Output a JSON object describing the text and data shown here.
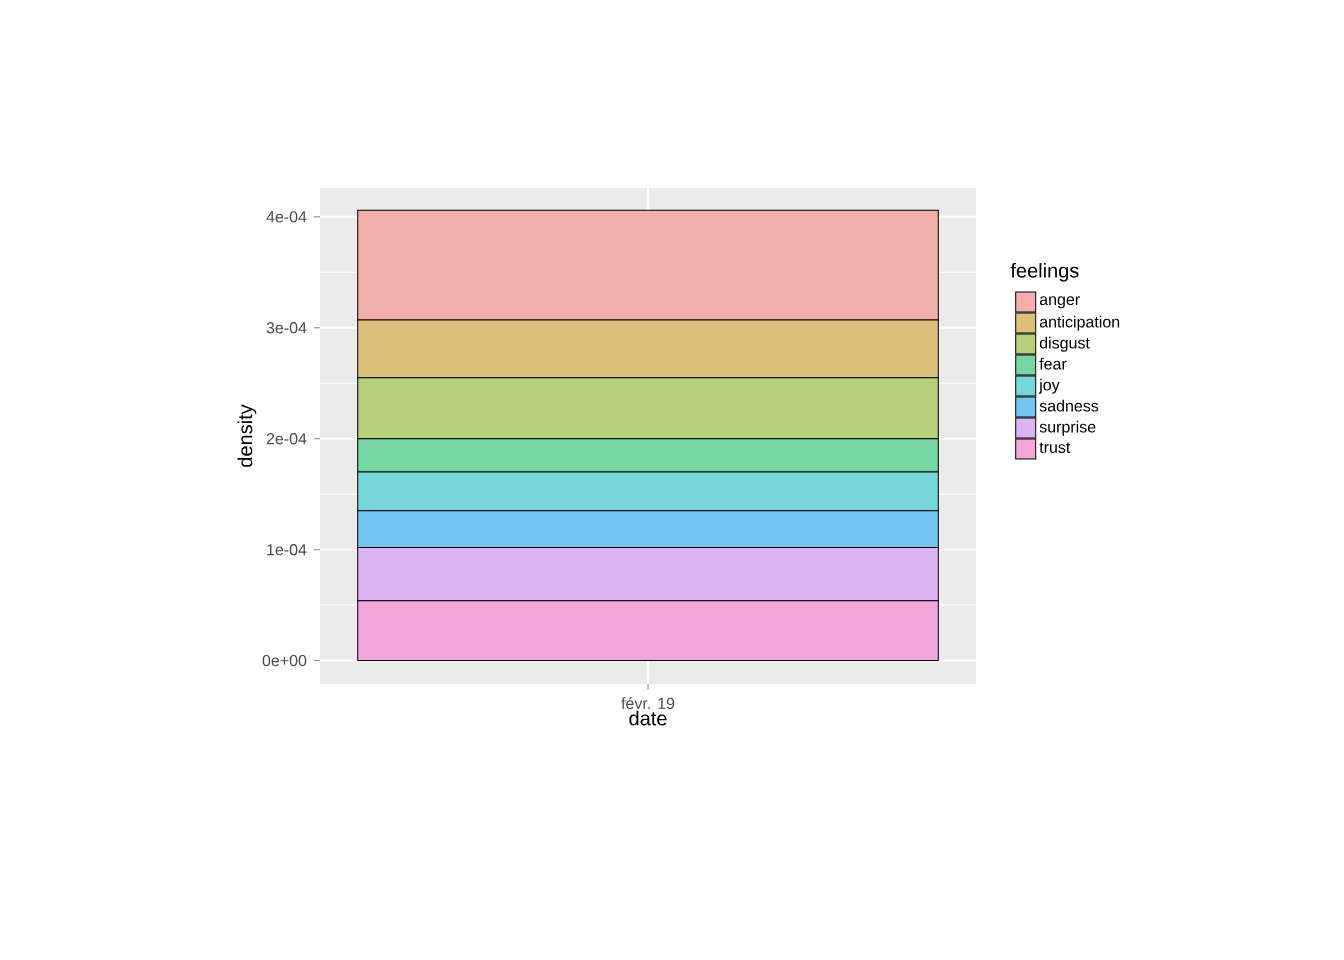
{
  "chart_data": {
    "type": "bar",
    "stacked": true,
    "xlabel": "date",
    "ylabel": "density",
    "legend_title": "feelings",
    "categories": [
      "févr. 19"
    ],
    "series": [
      {
        "name": "trust",
        "color": "#f4a6db",
        "values": [
          5.4e-05
        ]
      },
      {
        "name": "surprise",
        "color": "#dbb4f4",
        "values": [
          4.8e-05
        ]
      },
      {
        "name": "sadness",
        "color": "#73c6f2",
        "values": [
          3.3e-05
        ]
      },
      {
        "name": "joy",
        "color": "#77d6d8",
        "values": [
          3.5e-05
        ]
      },
      {
        "name": "fear",
        "color": "#78d6a4",
        "values": [
          3e-05
        ]
      },
      {
        "name": "disgust",
        "color": "#b5cf7b",
        "values": [
          5.5e-05
        ]
      },
      {
        "name": "anticipation",
        "color": "#dcc079",
        "values": [
          5.2e-05
        ]
      },
      {
        "name": "anger",
        "color": "#f1aeaa",
        "values": [
          9.9e-05
        ]
      }
    ],
    "ylim": [
      -2.11e-05,
      0.000426
    ],
    "yticks": [
      {
        "value": 0,
        "label": "0e+00"
      },
      {
        "value": 0.0001,
        "label": "1e-04"
      },
      {
        "value": 0.0002,
        "label": "2e-04"
      },
      {
        "value": 0.0003,
        "label": "3e-04"
      },
      {
        "value": 0.0004,
        "label": "4e-04"
      }
    ],
    "grid": true,
    "legend": "right"
  }
}
